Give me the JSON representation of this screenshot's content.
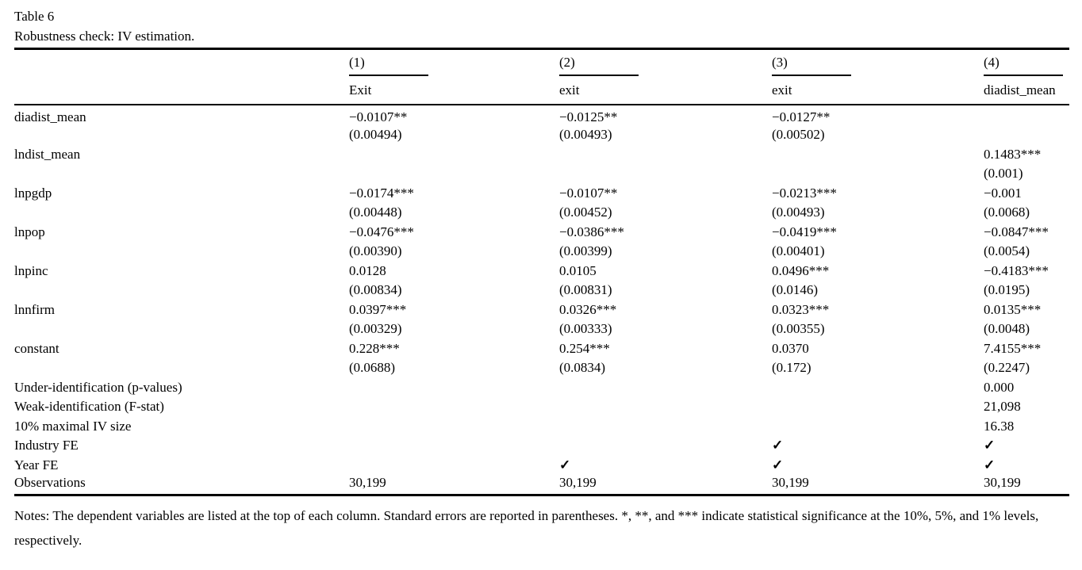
{
  "table": {
    "title": "Table 6",
    "subtitle": "Robustness check: IV estimation.",
    "columns": [
      {
        "number": "(1)",
        "dep_var": "Exit"
      },
      {
        "number": "(2)",
        "dep_var": "exit"
      },
      {
        "number": "(3)",
        "dep_var": "exit"
      },
      {
        "number": "(4)",
        "dep_var": "diadist_mean"
      }
    ],
    "rows": [
      {
        "label": "diadist_mean",
        "coef": [
          "−0.0107**",
          "−0.0125**",
          "−0.0127**",
          ""
        ],
        "se": [
          "(0.00494)",
          "(0.00493)",
          "(0.00502)",
          ""
        ]
      },
      {
        "label": "lndist_mean",
        "coef": [
          "",
          "",
          "",
          "0.1483***"
        ],
        "se": [
          "",
          "",
          "",
          "(0.001)"
        ]
      },
      {
        "label": "lnpgdp",
        "coef": [
          "−0.0174***",
          "−0.0107**",
          "−0.0213***",
          "−0.001"
        ],
        "se": [
          "(0.00448)",
          "(0.00452)",
          "(0.00493)",
          "(0.0068)"
        ]
      },
      {
        "label": "lnpop",
        "coef": [
          "−0.0476***",
          "−0.0386***",
          "−0.0419***",
          "−0.0847***"
        ],
        "se": [
          "(0.00390)",
          "(0.00399)",
          "(0.00401)",
          "(0.0054)"
        ]
      },
      {
        "label": "lnpinc",
        "coef": [
          "0.0128",
          "0.0105",
          "0.0496***",
          "−0.4183***"
        ],
        "se": [
          "(0.00834)",
          "(0.00831)",
          "(0.0146)",
          "(0.0195)"
        ]
      },
      {
        "label": "lnnfirm",
        "coef": [
          "0.0397***",
          "0.0326***",
          "0.0323***",
          "0.0135***"
        ],
        "se": [
          "(0.00329)",
          "(0.00333)",
          "(0.00355)",
          "(0.0048)"
        ]
      },
      {
        "label": "constant",
        "coef": [
          "0.228***",
          "0.254***",
          "0.0370",
          "7.4155***"
        ],
        "se": [
          "(0.0688)",
          "(0.0834)",
          "(0.172)",
          "(0.2247)"
        ]
      }
    ],
    "stats": [
      {
        "label": "Under-identification (p-values)",
        "values": [
          "",
          "",
          "",
          "0.000"
        ]
      },
      {
        "label": "Weak-identification (F-stat)",
        "values": [
          "",
          "",
          "",
          "21,098"
        ]
      },
      {
        "label": "10% maximal IV size",
        "values": [
          "",
          "",
          "",
          "16.38"
        ]
      },
      {
        "label": "Industry FE",
        "values": [
          "",
          "",
          "✓",
          "✓"
        ]
      },
      {
        "label": "Year FE",
        "values": [
          "",
          "✓",
          "✓",
          "✓"
        ]
      },
      {
        "label": "Observations",
        "values": [
          "30,199",
          "30,199",
          "30,199",
          "30,199"
        ]
      }
    ],
    "notes": "Notes: The dependent variables are listed at the top of each column. Standard errors are reported in parentheses. *, **, and *** indicate statistical significance at the 10%, 5%, and 1% levels, respectively."
  }
}
